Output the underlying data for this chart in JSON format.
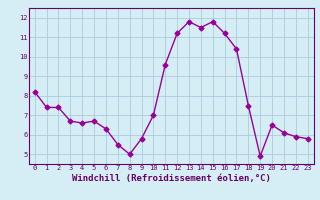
{
  "x": [
    0,
    1,
    2,
    3,
    4,
    5,
    6,
    7,
    8,
    9,
    10,
    11,
    12,
    13,
    14,
    15,
    16,
    17,
    18,
    19,
    20,
    21,
    22,
    23
  ],
  "y": [
    8.2,
    7.4,
    7.4,
    6.7,
    6.6,
    6.7,
    6.3,
    5.5,
    5.0,
    5.8,
    7.0,
    9.6,
    11.2,
    11.8,
    11.5,
    11.8,
    11.2,
    10.4,
    7.5,
    4.9,
    6.5,
    6.1,
    5.9,
    5.8
  ],
  "line_color": "#990099",
  "marker": "D",
  "marker_size": 2.5,
  "line_width": 1.0,
  "xlabel": "Windchill (Refroidissement éolien,°C)",
  "xlabel_fontsize": 6.5,
  "bg_color": "#d5eef5",
  "grid_color": "#aaccdd",
  "tick_label_color": "#660066",
  "axis_label_color": "#660066",
  "ylim_min": 4.5,
  "ylim_max": 12.5,
  "xlim_min": -0.5,
  "xlim_max": 23.5,
  "yticks": [
    5,
    6,
    7,
    8,
    9,
    10,
    11,
    12
  ],
  "xticks": [
    0,
    1,
    2,
    3,
    4,
    5,
    6,
    7,
    8,
    9,
    10,
    11,
    12,
    13,
    14,
    15,
    16,
    17,
    18,
    19,
    20,
    21,
    22,
    23
  ]
}
